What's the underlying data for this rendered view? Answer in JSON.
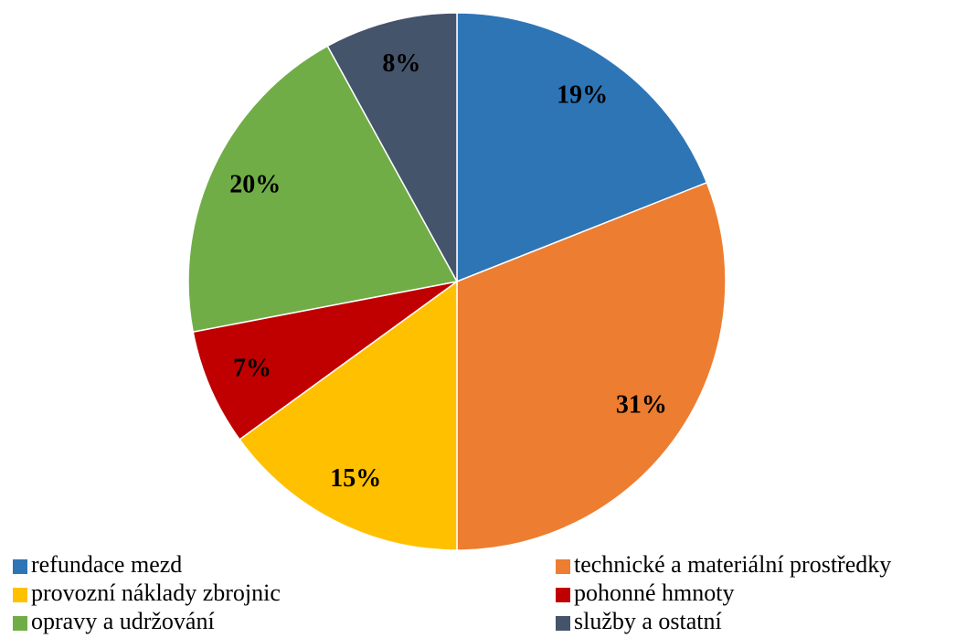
{
  "chart_data": {
    "type": "pie",
    "categories": [
      "refundace mezd",
      "technické a materiální prostředky",
      "provozní náklady zbrojnic",
      "pohonné hmnoty",
      "opravy a udržování",
      "služby a ostatní"
    ],
    "values": [
      19,
      31,
      15,
      7,
      20,
      8
    ],
    "value_labels": [
      "19%",
      "31%",
      "15%",
      "7%",
      "20%",
      "8%"
    ],
    "colors": [
      "#2e75b6",
      "#ed7d31",
      "#ffc000",
      "#c00000",
      "#70ad47",
      "#44546a"
    ],
    "legend": "bottom"
  }
}
